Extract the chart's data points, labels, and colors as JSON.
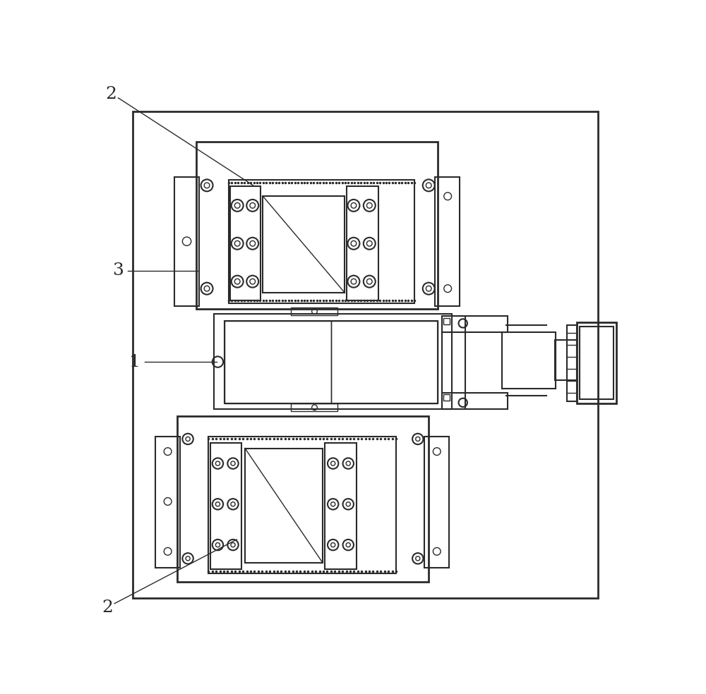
{
  "bg_color": "#ffffff",
  "line_color": "#2a2a2a",
  "lw_thick": 2.0,
  "lw_med": 1.5,
  "lw_thin": 1.0,
  "label_1": "1",
  "label_2": "2",
  "label_3": "3",
  "label_fontsize": 18
}
